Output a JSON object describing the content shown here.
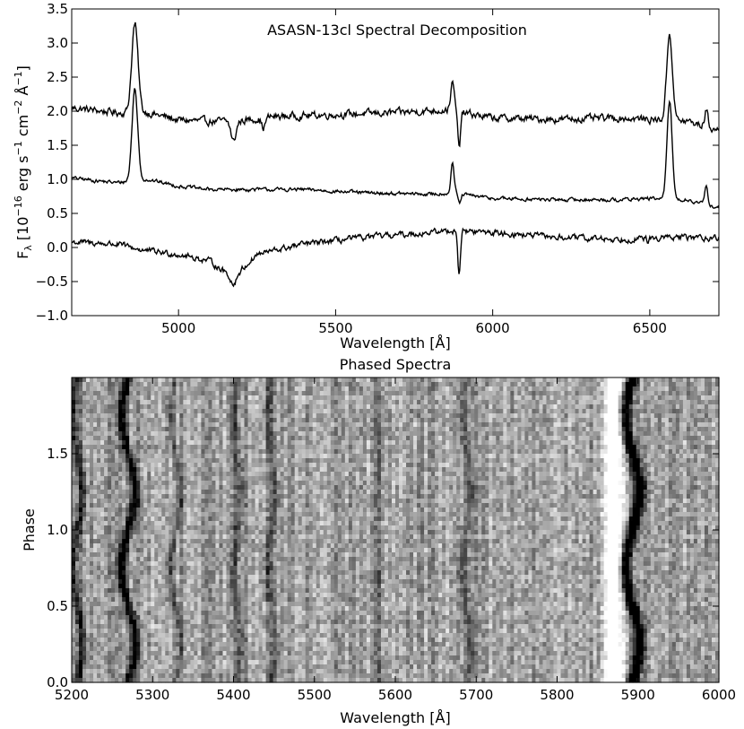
{
  "chart_data": [
    {
      "type": "line",
      "title": "ASASN-13cl Spectral Decomposition",
      "xlabel": "Wavelength [Å]",
      "ylabel_parts": [
        "F",
        "λ",
        " [10",
        "−16",
        " erg s",
        "−1",
        " cm",
        "−2",
        " Å",
        "−1",
        "]"
      ],
      "xlim": [
        4660,
        6720
      ],
      "ylim": [
        -1.0,
        3.5
      ],
      "xticks": [
        5000,
        5500,
        6000,
        6500
      ],
      "yticks": [
        -1.0,
        -0.5,
        0.0,
        0.5,
        1.0,
        1.5,
        2.0,
        2.5,
        3.0,
        3.5
      ],
      "xtick_labels": [
        "5000",
        "5500",
        "6000",
        "6500"
      ],
      "ytick_labels": [
        "−1.0",
        "−0.5",
        "0.0",
        "0.5",
        "1.0",
        "1.5",
        "2.0",
        "2.5",
        "3.0",
        "3.5"
      ],
      "series": [
        {
          "continuum": [
            [
              4660,
              2.05
            ],
            [
              4800,
              1.98
            ],
            [
              4900,
              1.98
            ],
            [
              5000,
              1.87
            ],
            [
              5100,
              1.85
            ],
            [
              5200,
              1.86
            ],
            [
              5300,
              1.92
            ],
            [
              5500,
              1.95
            ],
            [
              5700,
              1.98
            ],
            [
              5850,
              2.02
            ],
            [
              6000,
              1.9
            ],
            [
              6200,
              1.88
            ],
            [
              6400,
              1.9
            ],
            [
              6500,
              1.88
            ],
            [
              6620,
              1.85
            ],
            [
              6720,
              1.72
            ]
          ],
          "features": [
            [
              4861,
              1.3,
              10
            ],
            [
              5175,
              -0.3,
              8
            ],
            [
              5270,
              -0.15,
              6
            ],
            [
              5872,
              0.4,
              6
            ],
            [
              5893,
              -0.55,
              4
            ],
            [
              6563,
              1.27,
              9
            ],
            [
              6680,
              0.25,
              5
            ]
          ],
          "noise": 0.06
        },
        {
          "continuum": [
            [
              4660,
              1.02
            ],
            [
              4800,
              0.95
            ],
            [
              4900,
              1.0
            ],
            [
              5000,
              0.9
            ],
            [
              5100,
              0.85
            ],
            [
              5200,
              0.85
            ],
            [
              5400,
              0.85
            ],
            [
              5600,
              0.8
            ],
            [
              5800,
              0.78
            ],
            [
              5870,
              0.8
            ],
            [
              6000,
              0.72
            ],
            [
              6200,
              0.7
            ],
            [
              6400,
              0.7
            ],
            [
              6500,
              0.72
            ],
            [
              6620,
              0.7
            ],
            [
              6720,
              0.58
            ]
          ],
          "features": [
            [
              4861,
              1.35,
              9
            ],
            [
              5872,
              0.45,
              5
            ],
            [
              5895,
              -0.15,
              4
            ],
            [
              6563,
              1.45,
              8
            ],
            [
              6680,
              0.25,
              5
            ]
          ],
          "noise": 0.03
        },
        {
          "continuum": [
            [
              4660,
              0.08
            ],
            [
              4800,
              0.05
            ],
            [
              4900,
              -0.05
            ],
            [
              5000,
              -0.1
            ],
            [
              5100,
              -0.2
            ],
            [
              5175,
              -0.45
            ],
            [
              5250,
              -0.1
            ],
            [
              5400,
              0.05
            ],
            [
              5600,
              0.15
            ],
            [
              5800,
              0.22
            ],
            [
              5870,
              0.25
            ],
            [
              6000,
              0.22
            ],
            [
              6200,
              0.15
            ],
            [
              6400,
              0.12
            ],
            [
              6600,
              0.15
            ],
            [
              6720,
              0.14
            ]
          ],
          "features": [
            [
              5175,
              -0.1,
              8
            ],
            [
              5893,
              -0.65,
              4
            ],
            [
              6495,
              -0.1,
              3
            ]
          ],
          "noise": 0.05
        }
      ]
    },
    {
      "type": "heatmap",
      "title": "Phased Spectra",
      "xlabel": "Wavelength [Å]",
      "ylabel": "Phase",
      "xlim": [
        5200,
        6000
      ],
      "ylim": [
        0.0,
        2.0
      ],
      "xticks": [
        5200,
        5300,
        5400,
        5500,
        5600,
        5700,
        5800,
        5900,
        6000
      ],
      "yticks": [
        0.0,
        0.5,
        1.0,
        1.5
      ],
      "xtick_labels": [
        "5200",
        "5300",
        "5400",
        "5500",
        "5600",
        "5700",
        "5800",
        "5900",
        "6000"
      ],
      "ytick_labels": [
        "0.0",
        "0.5",
        "1.0",
        "1.5"
      ],
      "colormap": "grayscale",
      "lines": [
        {
          "wavelength": 5207,
          "depth": 0.5,
          "width": 4,
          "velocity_amp": 6
        },
        {
          "wavelength": 5270,
          "depth": 0.75,
          "width": 4,
          "velocity_amp": 8
        },
        {
          "wavelength": 5328,
          "depth": 0.35,
          "width": 3,
          "velocity_amp": 6
        },
        {
          "wavelength": 5405,
          "depth": 0.3,
          "width": 4,
          "velocity_amp": 4
        },
        {
          "wavelength": 5447,
          "depth": 0.3,
          "width": 4,
          "velocity_amp": 4
        },
        {
          "wavelength": 5578,
          "depth": 0.45,
          "width": 2,
          "velocity_amp": 0
        },
        {
          "wavelength": 5688,
          "depth": 0.3,
          "width": 4,
          "velocity_amp": 4
        },
        {
          "wavelength": 5870,
          "depth": -0.7,
          "width": 9,
          "velocity_amp": 0
        },
        {
          "wavelength": 5893,
          "depth": 0.95,
          "width": 5,
          "velocity_amp": 9
        }
      ]
    }
  ]
}
